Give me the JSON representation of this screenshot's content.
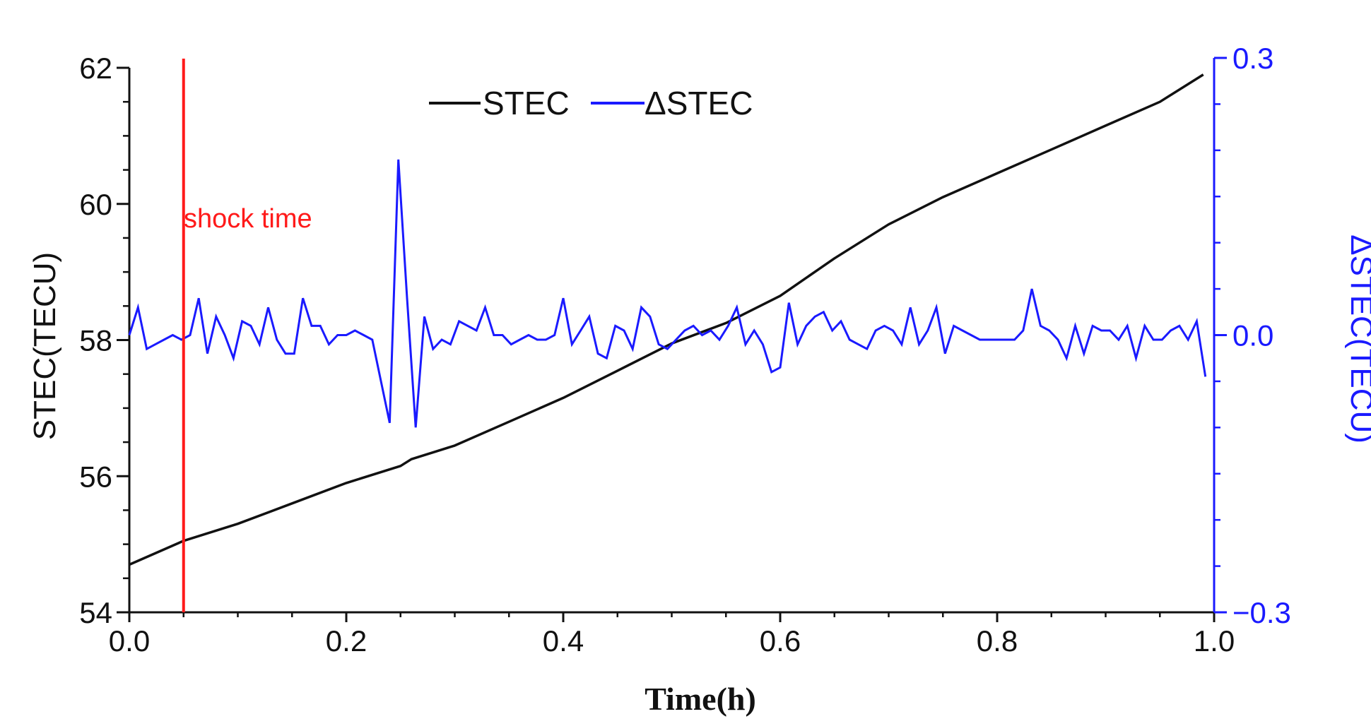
{
  "chart_data": {
    "type": "line",
    "x_label": "Time(h)",
    "y_label_left": "STEC(TECU)",
    "y_label_right": "ΔSTEC(TECU)",
    "xlim": [
      0,
      1
    ],
    "ylim_left": [
      54,
      62
    ],
    "ylim_right": [
      -0.3,
      0.3
    ],
    "x_ticks": [
      "0.0",
      "0.2",
      "0.4",
      "0.6",
      "0.8",
      "1.0"
    ],
    "y_ticks_left": [
      "54",
      "56",
      "58",
      "60",
      "62"
    ],
    "y_ticks_right": [
      "−0.3",
      "0.0",
      "0.3"
    ],
    "colors": {
      "stec": "#111111",
      "dstec": "#1a1aff",
      "shock": "#ff1a1a",
      "axis_right": "#1a1aff"
    },
    "legend": {
      "stec": "STEC",
      "dstec": "ΔSTEC",
      "position": "top-center"
    },
    "annotation": {
      "label": "shock time",
      "x": 0.05
    },
    "series": [
      {
        "name": "STEC",
        "axis": "left",
        "x": [
          0.0,
          0.05,
          0.1,
          0.15,
          0.2,
          0.25,
          0.26,
          0.3,
          0.35,
          0.4,
          0.45,
          0.5,
          0.55,
          0.6,
          0.65,
          0.7,
          0.75,
          0.8,
          0.85,
          0.9,
          0.95,
          0.99
        ],
        "values": [
          54.7,
          55.05,
          55.3,
          55.6,
          55.9,
          56.15,
          56.25,
          56.45,
          56.8,
          57.15,
          57.55,
          57.95,
          58.25,
          58.65,
          59.2,
          59.7,
          60.1,
          60.45,
          60.8,
          61.15,
          61.5,
          61.9
        ]
      },
      {
        "name": "ΔSTEC",
        "axis": "right",
        "x": [
          0.0,
          0.008,
          0.016,
          0.024,
          0.032,
          0.04,
          0.048,
          0.056,
          0.064,
          0.072,
          0.08,
          0.088,
          0.096,
          0.104,
          0.112,
          0.12,
          0.128,
          0.136,
          0.144,
          0.152,
          0.16,
          0.168,
          0.176,
          0.184,
          0.192,
          0.2,
          0.208,
          0.216,
          0.224,
          0.232,
          0.24,
          0.248,
          0.256,
          0.264,
          0.272,
          0.28,
          0.288,
          0.296,
          0.304,
          0.312,
          0.32,
          0.328,
          0.336,
          0.344,
          0.352,
          0.36,
          0.368,
          0.376,
          0.384,
          0.392,
          0.4,
          0.408,
          0.416,
          0.424,
          0.432,
          0.44,
          0.448,
          0.456,
          0.464,
          0.472,
          0.48,
          0.488,
          0.496,
          0.504,
          0.512,
          0.52,
          0.528,
          0.536,
          0.544,
          0.552,
          0.56,
          0.568,
          0.576,
          0.584,
          0.592,
          0.6,
          0.608,
          0.616,
          0.624,
          0.632,
          0.64,
          0.648,
          0.656,
          0.664,
          0.672,
          0.68,
          0.688,
          0.696,
          0.704,
          0.712,
          0.72,
          0.728,
          0.736,
          0.744,
          0.752,
          0.76,
          0.768,
          0.776,
          0.784,
          0.792,
          0.8,
          0.808,
          0.816,
          0.824,
          0.832,
          0.84,
          0.848,
          0.856,
          0.864,
          0.872,
          0.88,
          0.888,
          0.896,
          0.904,
          0.912,
          0.92,
          0.928,
          0.936,
          0.944,
          0.952,
          0.96,
          0.968,
          0.976,
          0.984,
          0.992
        ],
        "values": [
          0.0,
          0.03,
          -0.015,
          -0.01,
          -0.005,
          0.0,
          -0.005,
          0.0,
          0.04,
          -0.02,
          0.02,
          0.0,
          -0.025,
          0.015,
          0.01,
          -0.01,
          0.03,
          -0.005,
          -0.02,
          -0.02,
          0.04,
          0.01,
          0.01,
          -0.01,
          0.0,
          0.0,
          0.005,
          0.0,
          -0.005,
          -0.05,
          -0.095,
          0.19,
          0.04,
          -0.1,
          0.02,
          -0.015,
          -0.005,
          -0.01,
          0.015,
          0.01,
          0.005,
          0.03,
          0.0,
          0.0,
          -0.01,
          -0.005,
          0.0,
          -0.005,
          -0.005,
          0.0,
          0.04,
          -0.01,
          0.005,
          0.02,
          -0.02,
          -0.025,
          0.01,
          0.005,
          -0.015,
          0.03,
          0.02,
          -0.01,
          -0.015,
          -0.005,
          0.005,
          0.01,
          0.0,
          0.005,
          -0.005,
          0.01,
          0.03,
          -0.01,
          0.005,
          -0.01,
          -0.04,
          -0.035,
          0.035,
          -0.01,
          0.01,
          0.02,
          0.025,
          0.005,
          0.015,
          -0.005,
          -0.01,
          -0.015,
          0.005,
          0.01,
          0.005,
          -0.01,
          0.03,
          -0.01,
          0.005,
          0.03,
          -0.02,
          0.01,
          0.005,
          0.0,
          -0.005,
          -0.005,
          -0.005,
          -0.005,
          -0.005,
          0.005,
          0.05,
          0.01,
          0.005,
          -0.005,
          -0.025,
          0.01,
          -0.02,
          0.01,
          0.005,
          0.005,
          -0.005,
          0.01,
          -0.025,
          0.01,
          -0.005,
          -0.005,
          0.005,
          0.01,
          -0.005,
          0.015,
          -0.045
        ]
      }
    ]
  }
}
